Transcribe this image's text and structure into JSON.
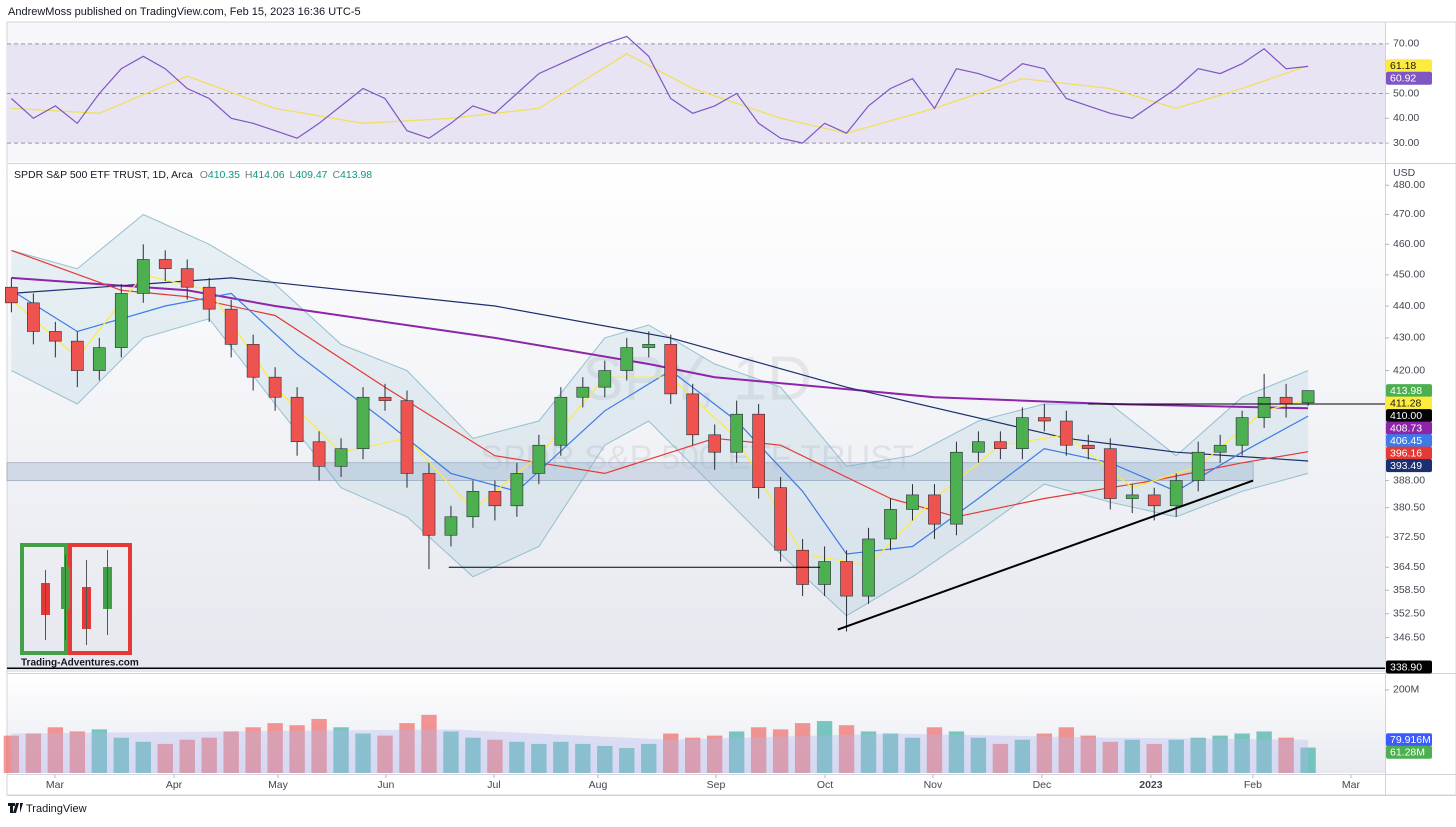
{
  "header": {
    "title": "AndrewMoss published on TradingView.com, Feb 15, 2023 16:36 UTC-5"
  },
  "footer": {
    "brand": "TradingView"
  },
  "logo": {
    "text": "Trading-Adventures.com"
  },
  "legend": {
    "symbol": "SPDR S&P 500 ETF TRUST, 1D, Arca",
    "ohlc_labels": [
      "O",
      "H",
      "L",
      "C"
    ]
  },
  "watermark": {
    "symbol": "SPY, 1D",
    "name": "SPDR S&P 500 ETF TRUST"
  },
  "chart_data": [
    {
      "type": "candlestick",
      "currency": "USD",
      "log_scale": true,
      "grid": false,
      "up_color": "#4caf50",
      "down_color": "#ef5350",
      "ylim": [
        338,
        486
      ],
      "yticks": [
        {
          "value": 480,
          "label": "480.00"
        },
        {
          "value": 470,
          "label": "470.00"
        },
        {
          "value": 460,
          "label": "460.00"
        },
        {
          "value": 450,
          "label": "450.00"
        },
        {
          "value": 440,
          "label": "440.00"
        },
        {
          "value": 430,
          "label": "430.00"
        },
        {
          "value": 420,
          "label": "420.00"
        },
        {
          "value": 388,
          "label": "388.00"
        },
        {
          "value": 380.5,
          "label": "380.50"
        },
        {
          "value": 372.5,
          "label": "372.50"
        },
        {
          "value": 364.5,
          "label": "364.50"
        },
        {
          "value": 358.5,
          "label": "358.50"
        },
        {
          "value": 352.5,
          "label": "352.50"
        },
        {
          "value": 346.5,
          "label": "346.50"
        }
      ],
      "open": [
        446,
        441,
        432,
        429,
        420,
        427,
        444,
        455,
        452,
        446,
        439,
        428,
        418,
        412,
        399,
        392,
        397,
        412,
        411,
        390,
        373,
        378,
        385,
        381,
        390,
        398,
        412,
        415,
        420,
        427,
        428,
        413,
        401,
        396,
        407,
        386,
        369,
        360,
        366,
        357,
        372,
        380,
        384,
        376,
        396,
        399,
        397,
        406,
        405,
        398,
        397,
        383,
        384,
        381,
        388,
        396,
        398,
        406,
        412,
        410.35
      ],
      "high": [
        449,
        444,
        435,
        432,
        430,
        447,
        460,
        458,
        455,
        449,
        442,
        431,
        421,
        415,
        402,
        400,
        415,
        416,
        414,
        393,
        381,
        388,
        388,
        393,
        401,
        415,
        418,
        423,
        430,
        432,
        431,
        416,
        404,
        411,
        410,
        389,
        372,
        370,
        369,
        375,
        383,
        387,
        387,
        399,
        402,
        402,
        409,
        410,
        408,
        401,
        400,
        387,
        386,
        390,
        399,
        401,
        408,
        419,
        416,
        414.06
      ],
      "low": [
        438,
        428,
        424,
        415,
        417,
        424,
        441,
        448,
        442,
        435,
        424,
        414,
        408,
        395,
        388,
        389,
        394,
        408,
        386,
        364,
        370,
        375,
        377,
        378,
        387,
        395,
        409,
        412,
        417,
        424,
        410,
        398,
        391,
        393,
        383,
        366,
        357,
        357,
        348,
        355,
        369,
        377,
        372,
        373,
        393,
        394,
        394,
        402,
        395,
        394,
        380,
        379,
        377,
        378,
        385,
        393,
        395,
        403,
        406,
        409.47
      ],
      "close": [
        441,
        432,
        429,
        420,
        427,
        444,
        455,
        452,
        446,
        439,
        428,
        418,
        412,
        399,
        392,
        397,
        412,
        411,
        390,
        373,
        378,
        385,
        381,
        390,
        398,
        412,
        415,
        420,
        427,
        428,
        413,
        401,
        396,
        407,
        386,
        369,
        360,
        366,
        357,
        372,
        380,
        384,
        376,
        396,
        399,
        397,
        406,
        405,
        398,
        397,
        383,
        384,
        381,
        388,
        396,
        398,
        406,
        412,
        410,
        413.98
      ],
      "bands": {
        "color": "#7fb3c8",
        "x": [
          0,
          3,
          6,
          9,
          12,
          15,
          18,
          21,
          24,
          27,
          29,
          32,
          35,
          38,
          41,
          44,
          47,
          50,
          53,
          56,
          59
        ],
        "upper": [
          458,
          452,
          470,
          460,
          447,
          428,
          420,
          400,
          405,
          430,
          434,
          422,
          415,
          392,
          395,
          405,
          410,
          410,
          395,
          412,
          420
        ],
        "lower": [
          420,
          410,
          430,
          436,
          410,
          386,
          378,
          362,
          370,
          398,
          405,
          386,
          368,
          352,
          362,
          374,
          387,
          382,
          378,
          385,
          390
        ]
      },
      "lines": [
        {
          "color": "#8e24aa",
          "x": [
            0,
            8,
            12,
            22,
            29,
            32,
            42,
            50,
            59
          ],
          "values": [
            449,
            445,
            440,
            430,
            422,
            418,
            412,
            410,
            408.73
          ]
        },
        {
          "color": "#1c2f6e",
          "x": [
            0,
            10,
            22,
            30,
            38,
            48,
            53,
            59
          ],
          "values": [
            444,
            449,
            440,
            430,
            415,
            400,
            396,
            393.49
          ]
        },
        {
          "color": "#e53935",
          "x": [
            0,
            5,
            8,
            12,
            17,
            22,
            27,
            32,
            35,
            40,
            43,
            47,
            52,
            56,
            59
          ],
          "values": [
            458,
            445,
            443,
            437,
            415,
            395,
            390,
            400,
            398,
            383,
            378,
            383,
            388,
            393,
            396.16
          ]
        },
        {
          "color": "#3d7be6",
          "x": [
            0,
            3,
            7,
            10,
            13,
            17,
            20,
            23,
            27,
            30,
            33,
            36,
            38,
            41,
            44,
            47,
            50,
            53,
            56,
            59
          ],
          "values": [
            445,
            432,
            440,
            444,
            425,
            405,
            390,
            385,
            408,
            420,
            405,
            385,
            368,
            370,
            383,
            397,
            393,
            385,
            396,
            406.45
          ]
        },
        {
          "color": "#ffeb3b",
          "x": [
            0,
            3,
            6,
            9,
            12,
            15,
            18,
            21,
            24,
            27,
            30,
            33,
            36,
            39,
            42,
            45,
            48,
            51,
            54,
            57,
            59
          ],
          "values": [
            442,
            424,
            450,
            445,
            415,
            396,
            400,
            380,
            395,
            418,
            418,
            400,
            368,
            365,
            383,
            398,
            401,
            386,
            392,
            408,
            411.28
          ]
        }
      ],
      "drawing_color": "#000000",
      "trendline": {
        "x": [
          37.6,
          56.5
        ],
        "values": [
          348.5,
          388
        ]
      },
      "support_line": {
        "x": [
          19.9,
          36.8
        ],
        "value": 364.5
      },
      "resistance_line": {
        "x": [
          49,
          62.5
        ],
        "value": {
          "value": 410,
          "label": "410.00"
        }
      },
      "zone": {
        "color": "#b8c4d8",
        "x": [
          -0.2,
          56.5
        ],
        "values": [
          388,
          393
        ]
      },
      "floor_line": {
        "value": 338.9,
        "label": "338.90"
      }
    },
    {
      "type": "line",
      "color": "#7e57c2",
      "ma_color": "#f0e060",
      "band_color": "#e9e4f4",
      "ylim": [
        22.4,
        78.8
      ],
      "yticks": [
        {
          "value": 70,
          "label": "70.00"
        },
        {
          "value": 50,
          "label": "50.00"
        },
        {
          "value": 40,
          "label": "40.00"
        },
        {
          "value": 30,
          "label": "30.00"
        }
      ],
      "levels": [
        70,
        50,
        30
      ],
      "values": [
        48,
        40,
        45,
        38,
        50,
        60,
        65,
        60,
        52,
        48,
        40,
        38,
        35,
        32,
        38,
        45,
        52,
        48,
        35,
        32,
        38,
        45,
        42,
        50,
        58,
        62,
        66,
        70,
        73,
        65,
        48,
        42,
        45,
        50,
        38,
        32,
        30,
        38,
        34,
        45,
        52,
        56,
        44,
        60,
        58,
        55,
        62,
        60,
        48,
        45,
        42,
        40,
        46,
        52,
        60,
        58,
        62,
        68,
        60,
        60.92
      ],
      "ma": {
        "x": [
          0,
          4,
          8,
          12,
          16,
          20,
          24,
          28,
          31,
          35,
          38,
          42,
          46,
          50,
          53,
          56,
          59
        ],
        "values": [
          44,
          42,
          57,
          44,
          38,
          40,
          44,
          66,
          52,
          40,
          34,
          44,
          56,
          52,
          44,
          52,
          61.18
        ]
      }
    },
    {
      "type": "bar",
      "up_color": "#26a69a",
      "down_color": "#ef5350",
      "ma_color": "#b3b8f0",
      "ylim": [
        0,
        231000000
      ],
      "yticks": [
        {
          "value": 200000000,
          "label": "200M"
        }
      ],
      "values": [
        90000000,
        95000000,
        110000000,
        100000000,
        105000000,
        85000000,
        75000000,
        70000000,
        80000000,
        85000000,
        100000000,
        110000000,
        120000000,
        115000000,
        130000000,
        110000000,
        95000000,
        90000000,
        120000000,
        140000000,
        100000000,
        85000000,
        80000000,
        75000000,
        70000000,
        75000000,
        70000000,
        65000000,
        60000000,
        70000000,
        95000000,
        85000000,
        90000000,
        100000000,
        110000000,
        105000000,
        120000000,
        125000000,
        115000000,
        100000000,
        95000000,
        85000000,
        110000000,
        100000000,
        85000000,
        70000000,
        80000000,
        95000000,
        110000000,
        90000000,
        75000000,
        80000000,
        70000000,
        80000000,
        85000000,
        90000000,
        95000000,
        100000000,
        85000000,
        61280000
      ],
      "value_labels": {
        "59": "61.28M"
      },
      "ma": {
        "x": [
          0,
          10,
          20,
          30,
          40,
          50,
          59
        ],
        "values": [
          95000000,
          100000000,
          105000000,
          80000000,
          95000000,
          85000000,
          79916000
        ],
        "last_label": "79.916M"
      },
      "xlim": [
        -0.2,
        62.5
      ],
      "xticks": [
        {
          "value": 1.98,
          "label": "Mar"
        },
        {
          "value": 7.4,
          "label": "Apr"
        },
        {
          "value": 12.13,
          "label": "May"
        },
        {
          "value": 17.04,
          "label": "Jun"
        },
        {
          "value": 21.96,
          "label": "Jul"
        },
        {
          "value": 26.69,
          "label": "Aug"
        },
        {
          "value": 32.06,
          "label": "Sep"
        },
        {
          "value": 37.02,
          "label": "Oct"
        },
        {
          "value": 41.93,
          "label": "Nov"
        },
        {
          "value": 46.89,
          "label": "Dec"
        },
        {
          "value": 51.85,
          "label": "2023"
        },
        {
          "value": 56.49,
          "label": "Feb"
        },
        {
          "value": 60.95,
          "label": "Mar"
        }
      ]
    }
  ]
}
